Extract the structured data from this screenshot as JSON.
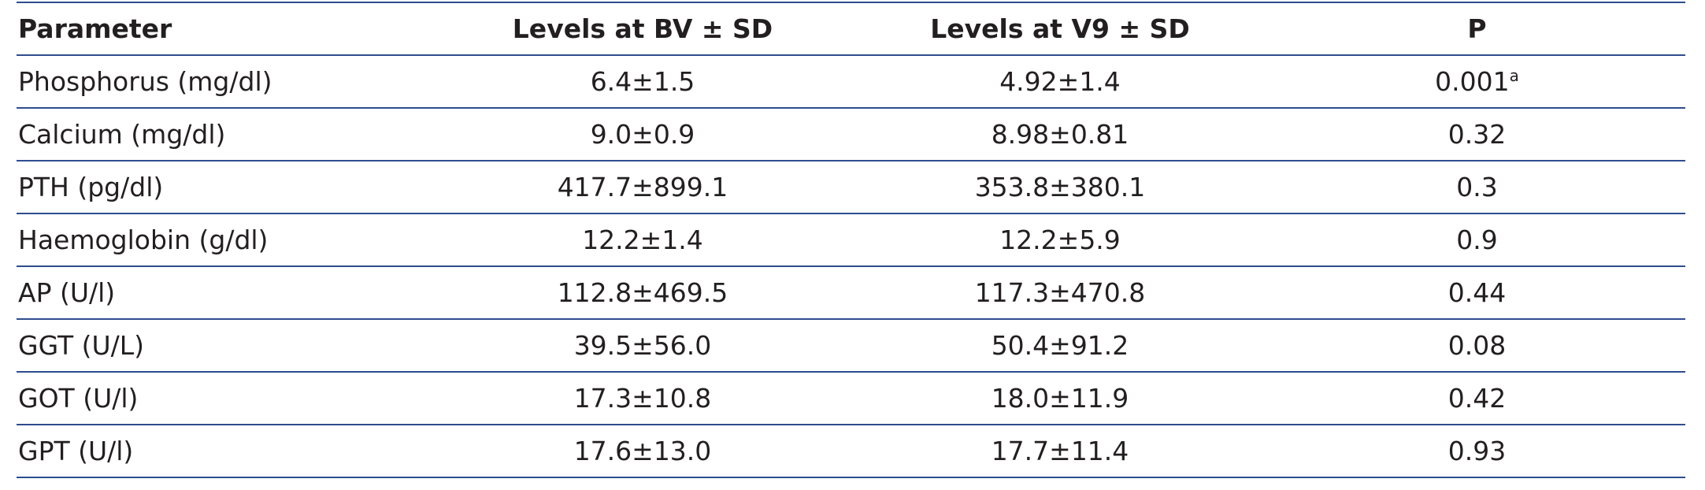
{
  "table": {
    "header": [
      "Parameter",
      "Levels at BV ± SD",
      "Levels at V9 ± SD",
      "P"
    ],
    "rows": [
      [
        {
          "text": "Phosphorus (mg/dl)"
        },
        {
          "text": "6.4±1.5"
        },
        {
          "text": "4.92±1.4"
        },
        {
          "text": "0.001",
          "sup": "a"
        }
      ],
      [
        {
          "text": "Calcium (mg/dl)"
        },
        {
          "text": "9.0±0.9"
        },
        {
          "text": "8.98±0.81"
        },
        {
          "text": "0.32"
        }
      ],
      [
        {
          "text": "PTH (pg/dl)"
        },
        {
          "text": "417.7±899.1"
        },
        {
          "text": "353.8±380.1"
        },
        {
          "text": "0.3"
        }
      ],
      [
        {
          "text": "Haemoglobin (g/dl)"
        },
        {
          "text": "12.2±1.4"
        },
        {
          "text": "12.2±5.9"
        },
        {
          "text": "0.9"
        }
      ],
      [
        {
          "text": "AP (U/l)"
        },
        {
          "text": "112.8±469.5"
        },
        {
          "text": "117.3±470.8"
        },
        {
          "text": "0.44"
        }
      ],
      [
        {
          "text": "GGT (U/L)"
        },
        {
          "text": "39.5±56.0"
        },
        {
          "text": "50.4±91.2"
        },
        {
          "text": "0.08"
        }
      ],
      [
        {
          "text": "GOT (U/l)"
        },
        {
          "text": "17.3±10.8"
        },
        {
          "text": "18.0±11.9"
        },
        {
          "text": "0.42"
        }
      ],
      [
        {
          "text": "GPT (U/l)"
        },
        {
          "text": "17.6±13.0"
        },
        {
          "text": "17.7±11.4"
        },
        {
          "text": "0.93"
        }
      ]
    ]
  }
}
